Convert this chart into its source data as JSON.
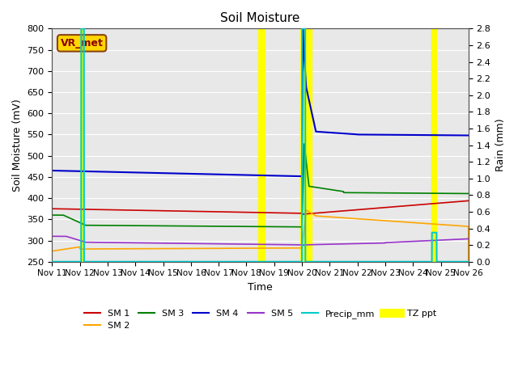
{
  "title": "Soil Moisture",
  "xlabel": "Time",
  "ylabel_left": "Soil Moisture (mV)",
  "ylabel_right": "Rain (mm)",
  "ylim_left": [
    250,
    800
  ],
  "ylim_right": [
    0.0,
    2.8
  ],
  "yticks_left": [
    250,
    300,
    350,
    400,
    450,
    500,
    550,
    600,
    650,
    700,
    750,
    800
  ],
  "yticks_right": [
    0.0,
    0.2,
    0.4,
    0.6,
    0.8,
    1.0,
    1.2,
    1.4,
    1.6,
    1.8,
    2.0,
    2.2,
    2.4,
    2.6,
    2.8
  ],
  "xtick_labels": [
    "Nov 11",
    "Nov 12",
    "Nov 13",
    "Nov 14",
    "Nov 15",
    "Nov 16",
    "Nov 17",
    "Nov 18",
    "Nov 19",
    "Nov 20",
    "Nov 21",
    "Nov 22",
    "Nov 23",
    "Nov 24",
    "Nov 25",
    "Nov 26"
  ],
  "bg_color": "#e8e8e8",
  "plot_bg_color": "#e8e8e8",
  "station_label": "VR_met",
  "station_label_color": "#8b0000",
  "station_box_facecolor": "#ffd700",
  "station_box_edgecolor": "#8b4513",
  "colors": {
    "SM1": "#cc0000",
    "SM2": "#ffa500",
    "SM3": "#008000",
    "SM4": "#0000cc",
    "SM5": "#9932cc",
    "Precip": "#00cccc",
    "TZppt": "#ffff00"
  },
  "grid_color": "#ffffff",
  "title_fontsize": 11,
  "label_fontsize": 9,
  "tick_fontsize": 8,
  "legend_fontsize": 8
}
